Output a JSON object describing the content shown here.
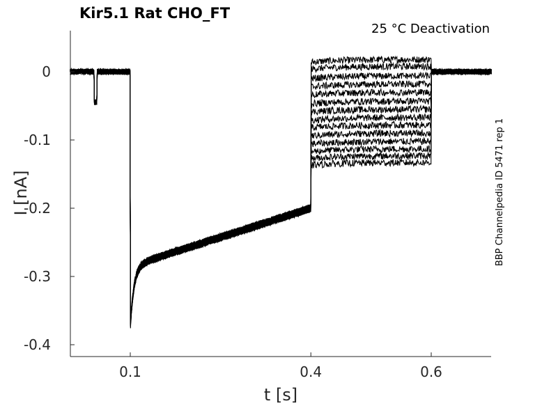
{
  "chart_data": {
    "type": "line",
    "title": "Kir5.1  Rat  CHO_FT",
    "annotation": "25 °C  Deactivation",
    "side_label": "BBP Channelpedia ID 5471 rep 1",
    "xlabel": "t [s]",
    "ylabel": "I [nA]",
    "xlim": [
      0.0,
      0.7
    ],
    "ylim": [
      -0.42,
      0.06
    ],
    "x_ticks": [
      0.1,
      0.4,
      0.6
    ],
    "x_tick_labels": [
      "0.1",
      "0.4",
      "0.6"
    ],
    "y_ticks": [
      0,
      -0.1,
      -0.2,
      -0.3,
      -0.4
    ],
    "y_tick_labels": [
      "0",
      "-0.1",
      "-0.2",
      "-0.3",
      "-0.4"
    ],
    "grid": false,
    "line_color": "#000000",
    "protocol": {
      "baseline_nA": 0.0,
      "test_pulse": {
        "start_s": 0.04,
        "end_s": 0.045,
        "current_nA": -0.045
      },
      "prepulse": {
        "start_s": 0.1,
        "end_s": 0.4,
        "peak_nA": -0.375,
        "end_current_nA": -0.2
      },
      "test_step": {
        "start_s": 0.4,
        "end_s": 0.6
      },
      "tail_end_s": 0.7
    },
    "series_test_currents_nA": [
      0.018,
      0.008,
      -0.006,
      -0.018,
      -0.03,
      -0.043,
      -0.055,
      -0.067,
      -0.078,
      -0.09,
      -0.102,
      -0.113,
      -0.123,
      -0.133
    ]
  }
}
